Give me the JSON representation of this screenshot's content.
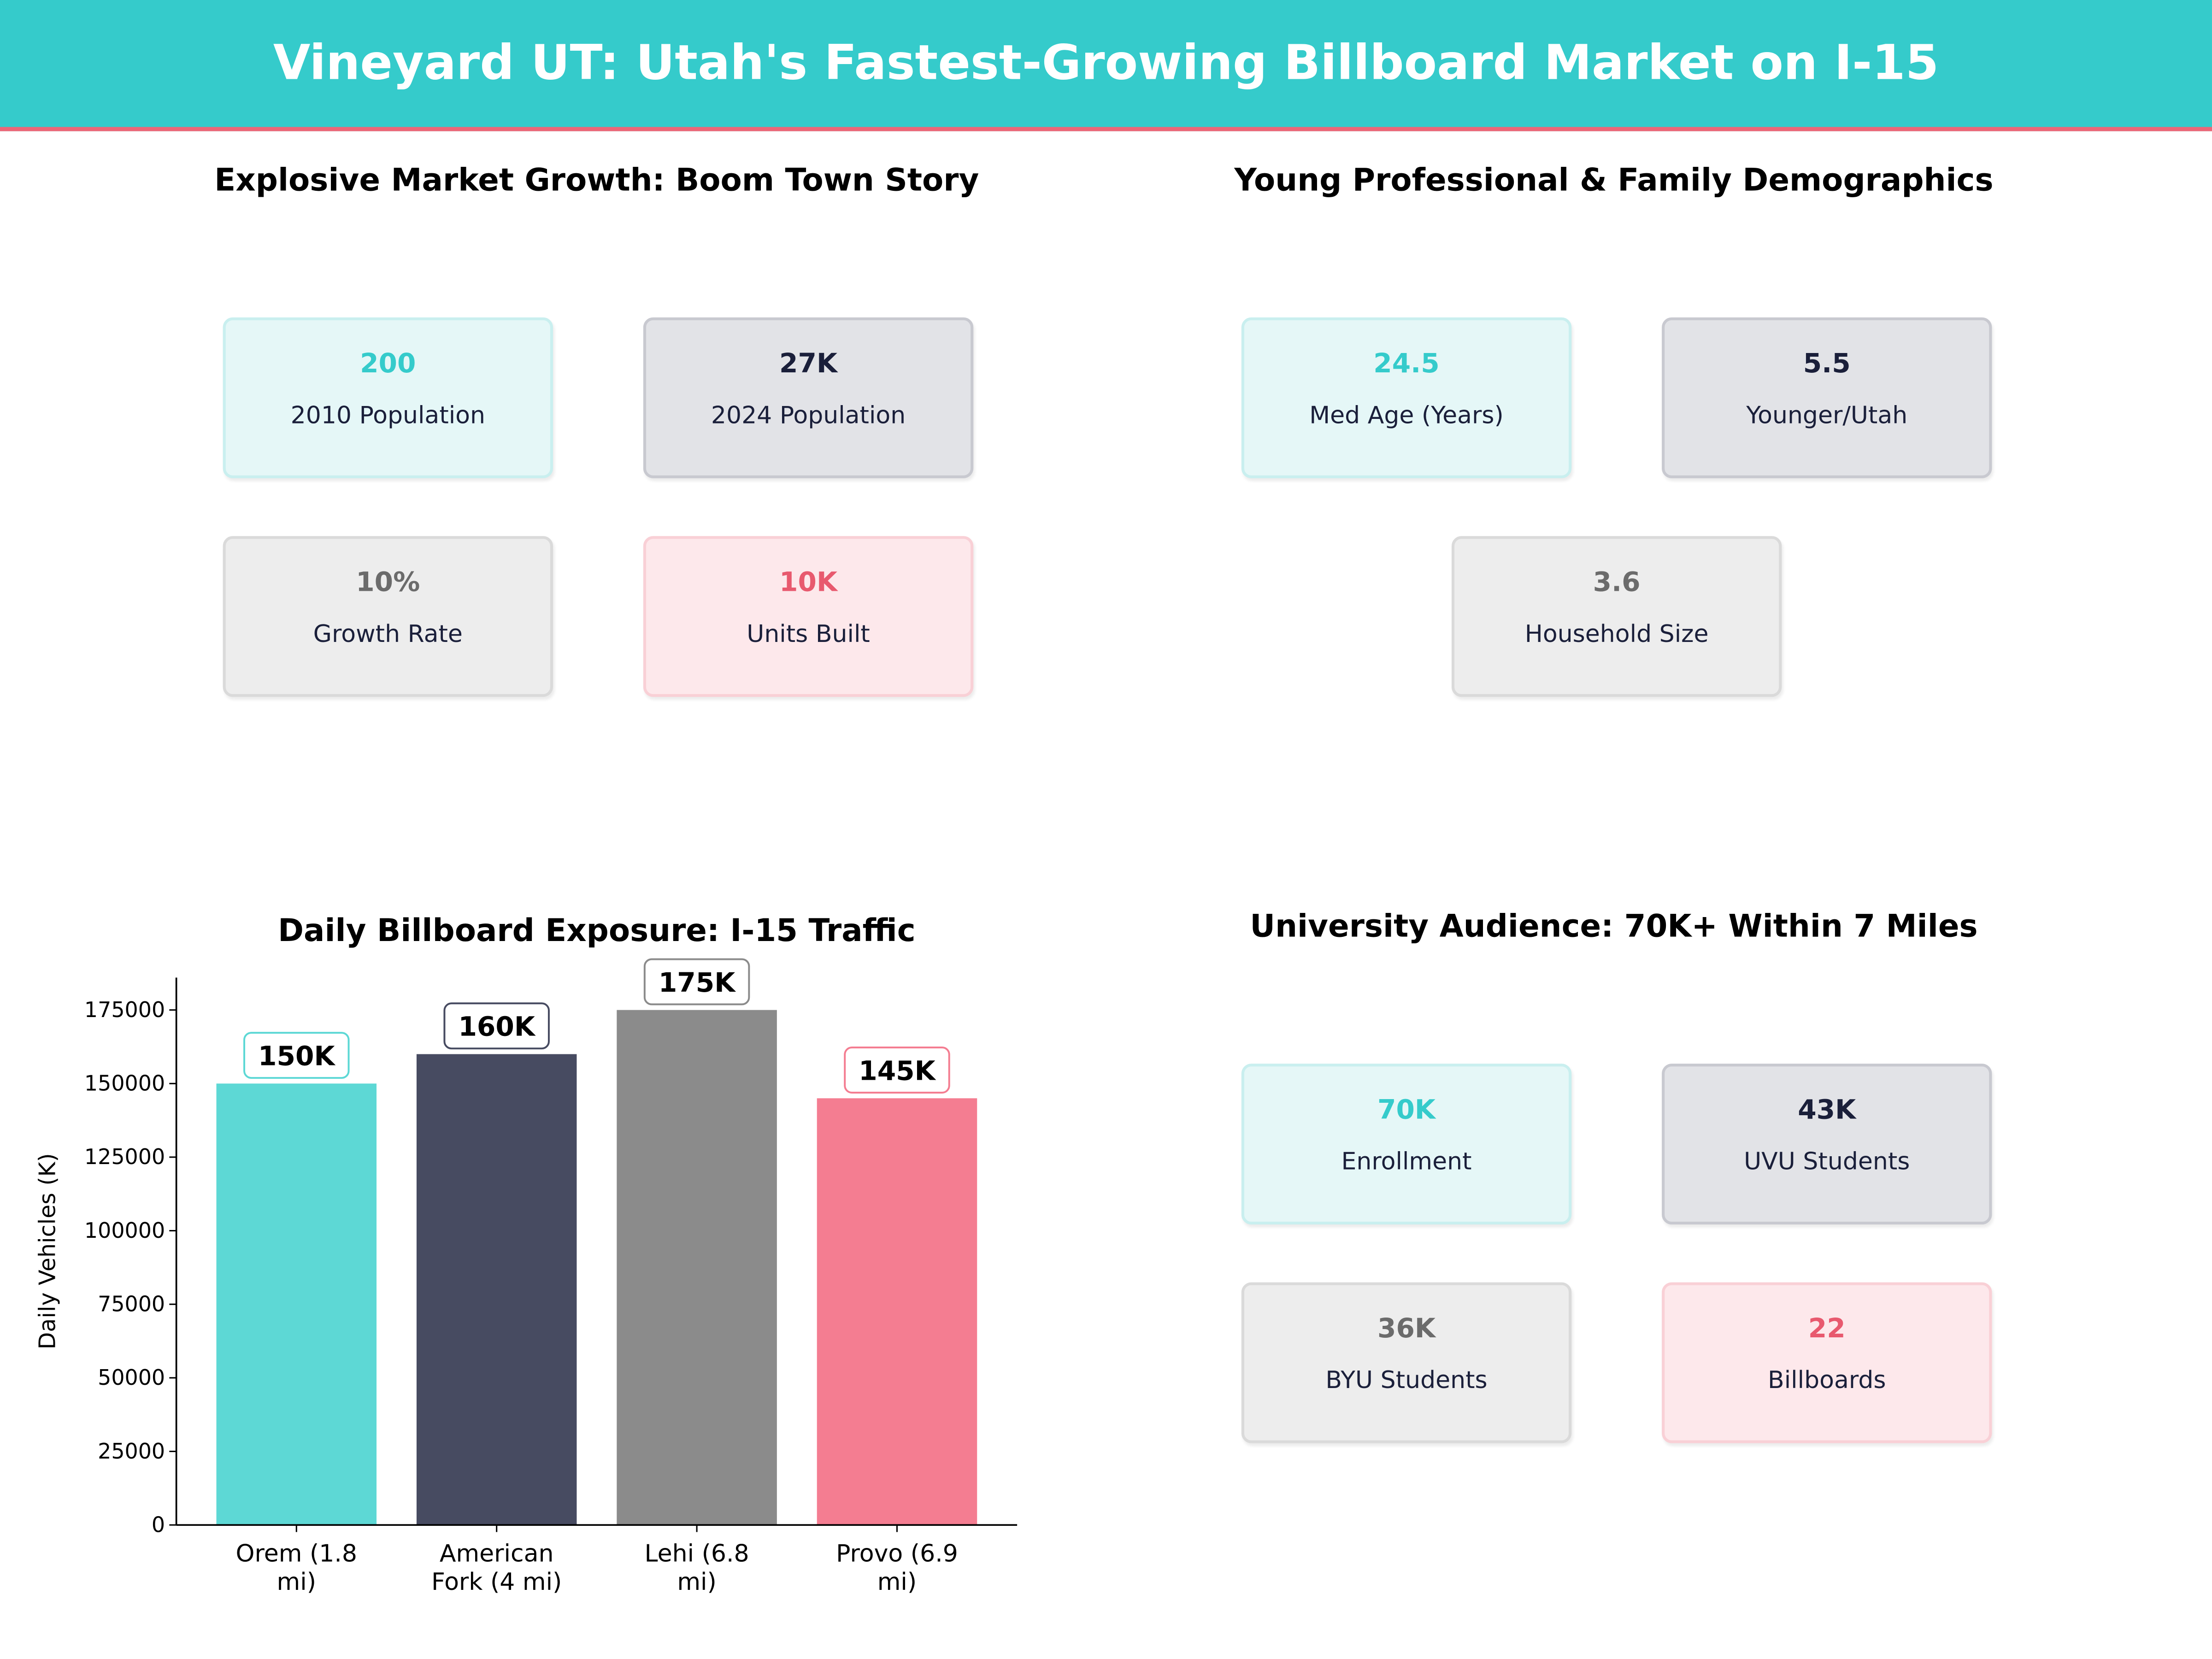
{
  "header": {
    "title": "Vineyard UT: Utah's Fastest-Growing Billboard Market on I-15"
  },
  "growth": {
    "title": "Explosive Market Growth: Boom Town Story",
    "cards": [
      {
        "value": "200",
        "label": "2010 Population"
      },
      {
        "value": "27K",
        "label": "2024 Population"
      },
      {
        "value": "10%",
        "label": "Growth Rate"
      },
      {
        "value": "10K",
        "label": "Units Built"
      }
    ]
  },
  "demographics": {
    "title": "Young Professional & Family Demographics",
    "cards": [
      {
        "value": "24.5",
        "label": "Med Age (Years)"
      },
      {
        "value": "5.5",
        "label": "Younger/Utah"
      },
      {
        "value": "3.6",
        "label": "Household Size"
      }
    ]
  },
  "university": {
    "title": "University Audience: 70K+ Within 7 Miles",
    "cards": [
      {
        "value": "70K",
        "label": "Enrollment"
      },
      {
        "value": "43K",
        "label": "UVU Students"
      },
      {
        "value": "36K",
        "label": "BYU Students"
      },
      {
        "value": "22",
        "label": "Billboards"
      }
    ]
  },
  "colors": {
    "teal": "#35CBCB",
    "navy": "#1A1F3A",
    "gray": "#6B6B6B",
    "pink": "#E8596E"
  },
  "chart_data": {
    "type": "bar",
    "title": "Daily Billboard Exposure: I-15 Traffic",
    "xlabel": "",
    "ylabel": "Daily Vehicles (K)",
    "categories": [
      "Orem (1.8 mi)",
      "American Fork (4 mi)",
      "Lehi (6.8 mi)",
      "Provo (6.9 mi)"
    ],
    "values": [
      150000,
      160000,
      175000,
      145000
    ],
    "data_labels": [
      "150K",
      "160K",
      "175K",
      "145K"
    ],
    "bar_colors": [
      "#5DD8D5",
      "#474B61",
      "#8B8B8B",
      "#F47D91"
    ],
    "label_border_colors": [
      "#5DD8D5",
      "#474B61",
      "#8B8B8B",
      "#F47D91"
    ],
    "yticks": [
      0,
      25000,
      50000,
      75000,
      100000,
      125000,
      150000,
      175000
    ],
    "ylim": [
      0,
      186000
    ],
    "grid": false
  }
}
